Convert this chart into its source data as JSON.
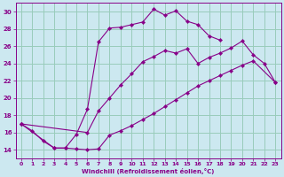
{
  "xlabel": "Windchill (Refroidissement éolien,°C)",
  "bg_color": "#cce8f0",
  "line_color": "#880088",
  "grid_color": "#99ccbb",
  "xlim": [
    -0.5,
    23.5
  ],
  "ylim": [
    13.0,
    31.0
  ],
  "yticks": [
    14,
    16,
    18,
    20,
    22,
    24,
    26,
    28,
    30
  ],
  "xticks": [
    0,
    1,
    2,
    3,
    4,
    5,
    6,
    7,
    8,
    9,
    10,
    11,
    12,
    13,
    14,
    15,
    16,
    17,
    18,
    19,
    20,
    21,
    22,
    23
  ],
  "series": [
    {
      "x": [
        0,
        1,
        2,
        3,
        4,
        5,
        6,
        7,
        8,
        9,
        10,
        11,
        12,
        13,
        14,
        15,
        16,
        17,
        18,
        19,
        20,
        21,
        22,
        23
      ],
      "y": [
        17.0,
        16.2,
        15.0,
        14.2,
        14.2,
        15.8,
        18.7,
        26.5,
        28.1,
        28.2,
        28.5,
        28.8,
        30.3,
        29.6,
        30.1,
        28.9,
        28.5,
        27.2,
        26.7,
        null,
        null,
        null,
        null,
        null
      ]
    },
    {
      "x": [
        0,
        3,
        4,
        5,
        6,
        7,
        8,
        9,
        10,
        11,
        12,
        13,
        14,
        15,
        16,
        17,
        18,
        19,
        20,
        21,
        22,
        23
      ],
      "y": [
        17.0,
        14.2,
        14.2,
        14.1,
        14.0,
        14.1,
        15.7,
        16.2,
        16.8,
        17.5,
        18.2,
        19.0,
        19.8,
        20.6,
        21.4,
        22.0,
        22.6,
        23.2,
        23.8,
        24.3,
        null,
        21.8
      ]
    },
    {
      "x": [
        0,
        6,
        7,
        8,
        9,
        10,
        11,
        12,
        13,
        14,
        15,
        16,
        17,
        18,
        19,
        20,
        21,
        22,
        23
      ],
      "y": [
        17.0,
        16.0,
        18.5,
        20.0,
        21.5,
        22.8,
        24.2,
        24.8,
        25.5,
        25.2,
        25.7,
        24.0,
        24.7,
        25.2,
        25.8,
        26.6,
        25.0,
        24.0,
        21.8
      ]
    }
  ]
}
